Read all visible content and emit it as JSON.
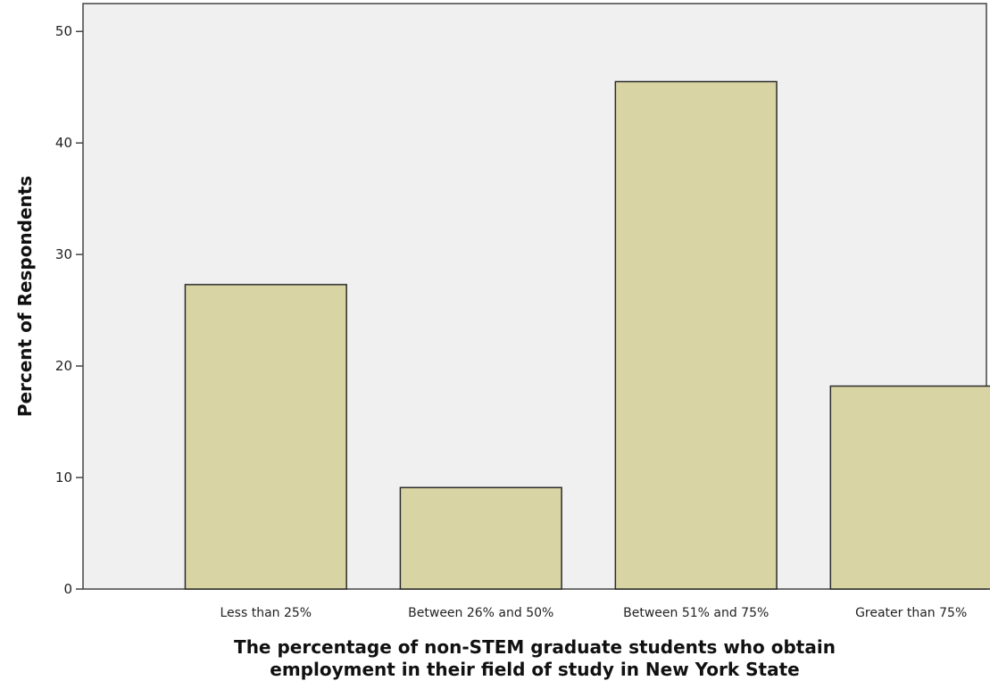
{
  "chart_data": {
    "type": "bar",
    "categories": [
      "Less than 25%",
      "Between 26% and 50%",
      "Between 51% and 75%",
      "Greater than 75%"
    ],
    "values": [
      27.3,
      9.1,
      45.5,
      18.2
    ],
    "xlabel_lines": [
      "The percentage of non-STEM graduate students who obtain",
      "employment in their field of study in New York State"
    ],
    "ylabel": "Percent of Respondents",
    "ylim": [
      0,
      52.5
    ],
    "yticks": [
      0,
      10,
      20,
      30,
      40,
      50
    ],
    "grid": false,
    "colors": {
      "bar_fill": "#d8d4a4",
      "bar_stroke": "#2b2b2b",
      "plot_bg": "#f0f0f0",
      "axis": "#444444"
    }
  }
}
